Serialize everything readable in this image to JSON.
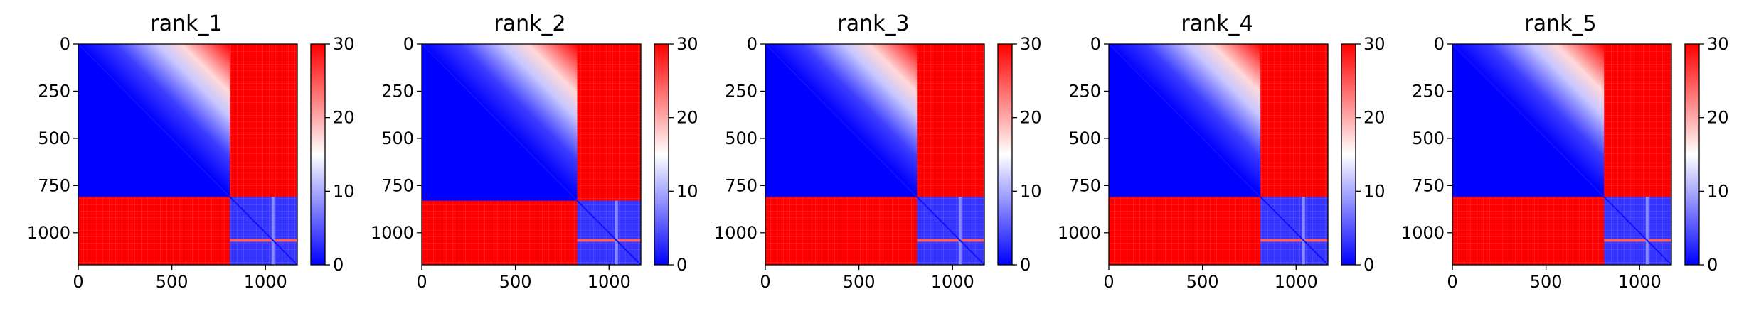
{
  "figure": {
    "panels": [
      {
        "title": "rank_1"
      },
      {
        "title": "rank_2"
      },
      {
        "title": "rank_3"
      },
      {
        "title": "rank_4"
      },
      {
        "title": "rank_5"
      }
    ]
  },
  "chart_data": [
    {
      "type": "heatmap",
      "title": "rank_1",
      "matrix_size": 1170,
      "block_boundary": 810,
      "xlim": [
        0,
        1170
      ],
      "ylim": [
        1170,
        0
      ],
      "x_ticks": [
        "0",
        "500",
        "1000"
      ],
      "x_tick_values": [
        0,
        500,
        1000
      ],
      "y_ticks": [
        "0",
        "250",
        "500",
        "750",
        "1000"
      ],
      "y_tick_values": [
        0,
        250,
        500,
        750,
        1000
      ],
      "colormap": [
        "#0000ff",
        "#ffffff",
        "#ff0000"
      ],
      "colorbar_range": [
        0,
        30
      ],
      "colorbar_ticks": [
        "0",
        "10",
        "20",
        "30"
      ],
      "colorbar_tick_values": [
        0,
        10,
        20,
        30
      ]
    },
    {
      "type": "heatmap",
      "title": "rank_2",
      "matrix_size": 1170,
      "block_boundary": 830,
      "xlim": [
        0,
        1170
      ],
      "ylim": [
        1170,
        0
      ],
      "x_ticks": [
        "0",
        "500",
        "1000"
      ],
      "x_tick_values": [
        0,
        500,
        1000
      ],
      "y_ticks": [
        "0",
        "250",
        "500",
        "750",
        "1000"
      ],
      "y_tick_values": [
        0,
        250,
        500,
        750,
        1000
      ],
      "colormap": [
        "#0000ff",
        "#ffffff",
        "#ff0000"
      ],
      "colorbar_range": [
        0,
        30
      ],
      "colorbar_ticks": [
        "0",
        "10",
        "20",
        "30"
      ],
      "colorbar_tick_values": [
        0,
        10,
        20,
        30
      ]
    },
    {
      "type": "heatmap",
      "title": "rank_3",
      "matrix_size": 1170,
      "block_boundary": 810,
      "xlim": [
        0,
        1170
      ],
      "ylim": [
        1170,
        0
      ],
      "x_ticks": [
        "0",
        "500",
        "1000"
      ],
      "x_tick_values": [
        0,
        500,
        1000
      ],
      "y_ticks": [
        "0",
        "250",
        "500",
        "750",
        "1000"
      ],
      "y_tick_values": [
        0,
        250,
        500,
        750,
        1000
      ],
      "colormap": [
        "#0000ff",
        "#ffffff",
        "#ff0000"
      ],
      "colorbar_range": [
        0,
        30
      ],
      "colorbar_ticks": [
        "0",
        "10",
        "20",
        "30"
      ],
      "colorbar_tick_values": [
        0,
        10,
        20,
        30
      ]
    },
    {
      "type": "heatmap",
      "title": "rank_4",
      "matrix_size": 1170,
      "block_boundary": 810,
      "xlim": [
        0,
        1170
      ],
      "ylim": [
        1170,
        0
      ],
      "x_ticks": [
        "0",
        "500",
        "1000"
      ],
      "x_tick_values": [
        0,
        500,
        1000
      ],
      "y_ticks": [
        "0",
        "250",
        "500",
        "750",
        "1000"
      ],
      "y_tick_values": [
        0,
        250,
        500,
        750,
        1000
      ],
      "colormap": [
        "#0000ff",
        "#ffffff",
        "#ff0000"
      ],
      "colorbar_range": [
        0,
        30
      ],
      "colorbar_ticks": [
        "0",
        "10",
        "20",
        "30"
      ],
      "colorbar_tick_values": [
        0,
        10,
        20,
        30
      ]
    },
    {
      "type": "heatmap",
      "title": "rank_5",
      "matrix_size": 1170,
      "block_boundary": 810,
      "xlim": [
        0,
        1170
      ],
      "ylim": [
        1170,
        0
      ],
      "x_ticks": [
        "0",
        "500",
        "1000"
      ],
      "x_tick_values": [
        0,
        500,
        1000
      ],
      "y_ticks": [
        "0",
        "250",
        "500",
        "750",
        "1000"
      ],
      "y_tick_values": [
        0,
        250,
        500,
        750,
        1000
      ],
      "colormap": [
        "#0000ff",
        "#ffffff",
        "#ff0000"
      ],
      "colorbar_range": [
        0,
        30
      ],
      "colorbar_ticks": [
        "0",
        "10",
        "20",
        "30"
      ],
      "colorbar_tick_values": [
        0,
        10,
        20,
        30
      ]
    }
  ]
}
